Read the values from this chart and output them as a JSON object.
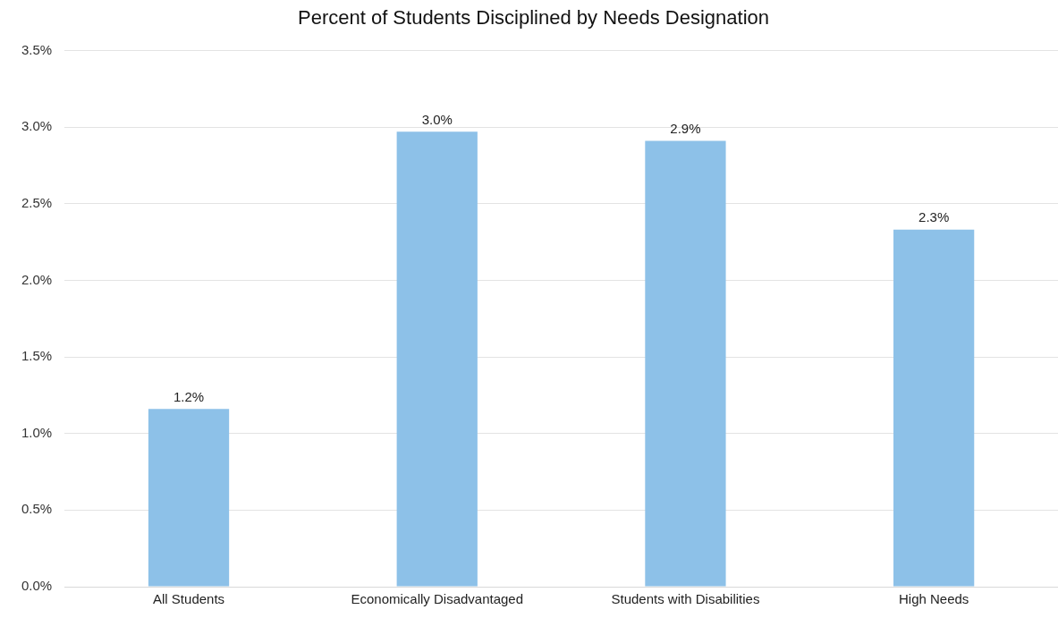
{
  "chart_data": {
    "type": "bar",
    "title": "Percent of Students Disciplined by Needs Designation",
    "categories": [
      "All Students",
      "Economically Disadvantaged",
      "Students with Disabilities",
      "High Needs"
    ],
    "values": [
      1.16,
      2.97,
      2.91,
      2.33
    ],
    "value_labels": [
      "1.2%",
      "3.0%",
      "2.9%",
      "2.3%"
    ],
    "color": "#8dc1e8",
    "ylim": [
      0,
      3.5
    ],
    "yticks": [
      {
        "value": 0,
        "label": "0.0%"
      },
      {
        "value": 0.5,
        "label": "0.5%"
      },
      {
        "value": 1,
        "label": "1.0%"
      },
      {
        "value": 1.5,
        "label": "1.5%"
      },
      {
        "value": 2,
        "label": "2.0%"
      },
      {
        "value": 2.5,
        "label": "2.5%"
      },
      {
        "value": 3,
        "label": "3.0%"
      },
      {
        "value": 3.5,
        "label": "3.5%"
      }
    ],
    "grid": "y",
    "legend": false
  }
}
